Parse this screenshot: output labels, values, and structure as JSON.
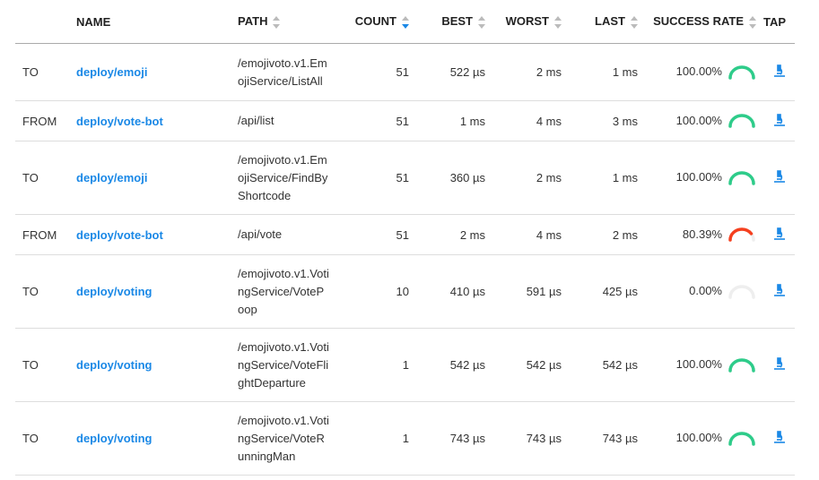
{
  "columns": {
    "direction": "",
    "name": "NAME",
    "path": "PATH",
    "count": "COUNT",
    "best": "BEST",
    "worst": "WORST",
    "last": "LAST",
    "success_rate": "SUCCESS RATE",
    "tap": "TAP"
  },
  "sort": {
    "column": "count",
    "direction": "descending"
  },
  "colors": {
    "link": "#1a88e6",
    "success": "#2ecc8a",
    "failure": "#f5401f",
    "empty": "#eeeeee"
  },
  "rows": [
    {
      "direction": "TO",
      "name": "deploy/emoji",
      "path": "/emojivoto.v1.EmojiService/ListAll",
      "count": "51",
      "best": "522 µs",
      "worst": "2 ms",
      "last": "1 ms",
      "success_rate": "100.00%",
      "rate": 1.0
    },
    {
      "direction": "FROM",
      "name": "deploy/vote-bot",
      "path": "/api/list",
      "count": "51",
      "best": "1 ms",
      "worst": "4 ms",
      "last": "3 ms",
      "success_rate": "100.00%",
      "rate": 1.0
    },
    {
      "direction": "TO",
      "name": "deploy/emoji",
      "path": "/emojivoto.v1.EmojiService/FindByShortcode",
      "count": "51",
      "best": "360 µs",
      "worst": "2 ms",
      "last": "1 ms",
      "success_rate": "100.00%",
      "rate": 1.0
    },
    {
      "direction": "FROM",
      "name": "deploy/vote-bot",
      "path": "/api/vote",
      "count": "51",
      "best": "2 ms",
      "worst": "4 ms",
      "last": "2 ms",
      "success_rate": "80.39%",
      "rate": 0.8039
    },
    {
      "direction": "TO",
      "name": "deploy/voting",
      "path": "/emojivoto.v1.VotingService/VotePoop",
      "count": "10",
      "best": "410 µs",
      "worst": "591 µs",
      "last": "425 µs",
      "success_rate": "0.00%",
      "rate": 0.0
    },
    {
      "direction": "TO",
      "name": "deploy/voting",
      "path": "/emojivoto.v1.VotingService/VoteFlightDeparture",
      "count": "1",
      "best": "542 µs",
      "worst": "542 µs",
      "last": "542 µs",
      "success_rate": "100.00%",
      "rate": 1.0
    },
    {
      "direction": "TO",
      "name": "deploy/voting",
      "path": "/emojivoto.v1.VotingService/VoteRunningMan",
      "count": "1",
      "best": "743 µs",
      "worst": "743 µs",
      "last": "743 µs",
      "success_rate": "100.00%",
      "rate": 1.0
    }
  ]
}
